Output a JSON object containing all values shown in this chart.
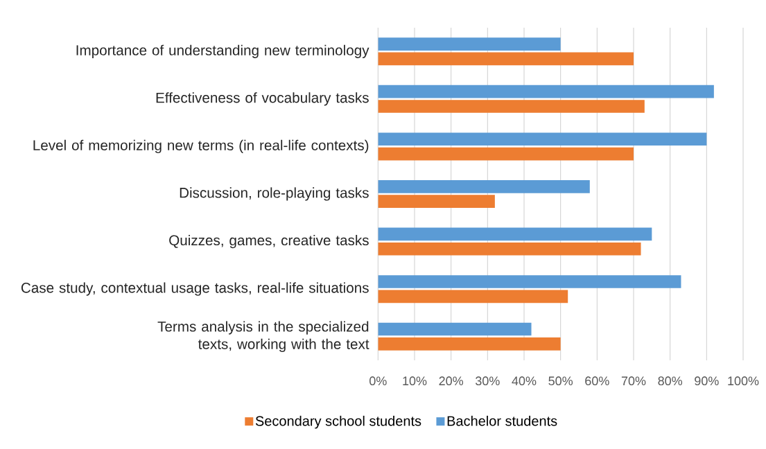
{
  "chart_data": {
    "type": "bar",
    "orientation": "horizontal",
    "categories": [
      "Importance of understanding new terminology",
      "Effectiveness of vocabulary tasks",
      "Level of memorizing new terms (in real-life contexts)",
      "Discussion, role-playing tasks",
      "Quizzes, games, creative tasks",
      "Case study, contextual usage tasks, real-life situations",
      "Terms analysis in the specialized texts, working with the text"
    ],
    "series": [
      {
        "name": "Secondary school students",
        "color": "#ed7d31",
        "values": [
          70,
          73,
          70,
          32,
          72,
          52,
          50
        ]
      },
      {
        "name": "Bachelor students",
        "color": "#5b9bd5",
        "values": [
          50,
          92,
          90,
          58,
          75,
          83,
          42
        ]
      }
    ],
    "xlim": [
      0,
      100
    ],
    "xticks": [
      {
        "value": 0,
        "label": "0%"
      },
      {
        "value": 10,
        "label": "10%"
      },
      {
        "value": 20,
        "label": "20%"
      },
      {
        "value": 30,
        "label": "30%"
      },
      {
        "value": 40,
        "label": "40%"
      },
      {
        "value": 50,
        "label": "50%"
      },
      {
        "value": 60,
        "label": "60%"
      },
      {
        "value": 70,
        "label": "70%"
      },
      {
        "value": 80,
        "label": "80%"
      },
      {
        "value": 90,
        "label": "90%"
      },
      {
        "value": 100,
        "label": "100%"
      }
    ],
    "grid": "x",
    "legend": "bottom"
  }
}
